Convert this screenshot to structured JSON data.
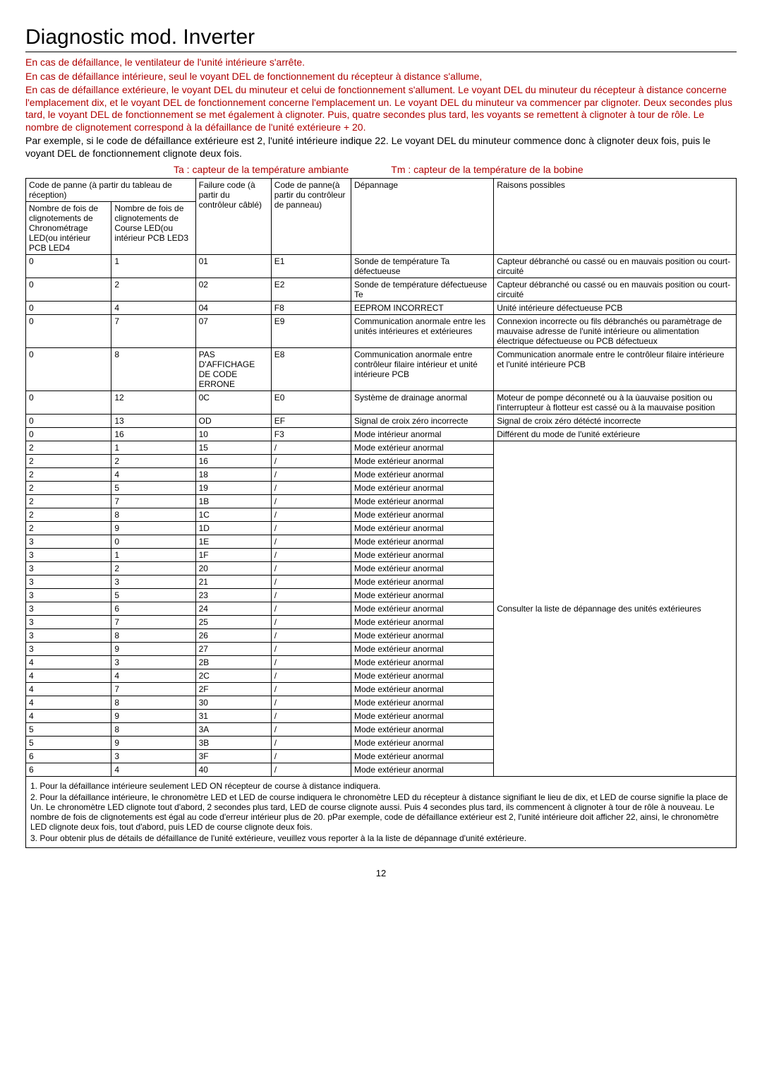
{
  "title": "Diagnostic mod. Inverter",
  "intro": [
    {
      "text": "En cas de défaillance, le ventilateur de l'unité intérieure s'arrête.",
      "red": true
    },
    {
      "text": "En cas de défaillance intérieure, seul le voyant DEL de fonctionnement du récepteur à distance s'allume,",
      "red": true
    },
    {
      "text": "En cas de défaillance extérieure, le voyant DEL du minuteur et celui de fonctionnement s'allument. Le voyant DEL du minuteur du récepteur à distance concerne l'emplacement dix, et le voyant DEL de fonctionnement concerne l'emplacement un. Le voyant DEL du minuteur va commencer par clignoter. Deux secondes plus tard, le voyant DEL de fonctionnement se met également à clignoter. Puis, quatre secondes plus tard, les voyants se remettent à clignoter à tour de rôle. Le nombre de clignotement correspond à la défaillance de l'unité extérieure + 20.",
      "red": true
    },
    {
      "text": "Par exemple, si le code de défaillance extérieure est 2, l'unité intérieure indique 22. Le voyant DEL du minuteur commence donc à clignoter deux fois, puis le voyant DEL de fonctionnement clignote deux fois.",
      "red": false
    }
  ],
  "legend": {
    "ta": "Ta : capteur de la température ambiante",
    "tm": "Tm : capteur de la température de la bobine"
  },
  "headers": {
    "topA": "Code de panne (à partir du tableau de réception)",
    "subA1": "Nombre de fois de clignotements de Chronométrage LED(ou intérieur PCB LED4",
    "subA2": "Nombre de fois de clignotements de Course LED(ou intérieur PCB LED3",
    "c3": "Failure code (à partir du contrôleur câblé)",
    "c4": "Code de panne(à partir du contrôleur de panneau)",
    "c5": "Dépannage",
    "c6": "Raisons possibles"
  },
  "rows_a": [
    {
      "a": "0",
      "b": "1",
      "c": "01",
      "d": "E1",
      "e": "Sonde de température Ta défectueuse",
      "f": "Capteur débranché ou cassé ou en mauvais position ou court-circuité"
    },
    {
      "a": "0",
      "b": "2",
      "c": "02",
      "d": "E2",
      "e": "Sonde de température défectueuse Te",
      "f": "Capteur débranché ou cassé ou en mauvais position ou court-circuité"
    },
    {
      "a": "0",
      "b": "4",
      "c": "04",
      "d": "F8",
      "e": "EEPROM INCORRECT",
      "f": "Unité intérieure défectueuse PCB"
    },
    {
      "a": "0",
      "b": "7",
      "c": "07",
      "d": "E9",
      "e": "Communication anormale entre les unités intérieures et extérieures",
      "f": "Connexion incorrecte ou fils débranchés ou paramètrage de mauvaise adresse de l'unité intérieure ou alimentation électrique défectueuse ou PCB défectueux"
    },
    {
      "a": "0",
      "b": "8",
      "c": "PAS D'AFFICHAGE DE CODE ERRONE",
      "d": "E8",
      "e": "Communication anormale entre contrôleur filaire intérieur et unité intérieure PCB",
      "f": "Communication anormale entre le contrôleur filaire intérieure et l'unité intérieure PCB"
    },
    {
      "a": "0",
      "b": "12",
      "c": "0C",
      "d": "E0",
      "e": "Système de drainage anormal",
      "f": "Moteur de pompe déconneté ou à la ùauvaise position ou l'interrupteur à flotteur est cassé ou à la mauvaise position"
    },
    {
      "a": "0",
      "b": "13",
      "c": "OD",
      "d": "EF",
      "e": "Signal de croix zéro incorrecte",
      "f": "Signal de croix zéro détécté incorrecte"
    },
    {
      "a": "0",
      "b": "16",
      "c": "10",
      "d": "F3",
      "e": "Mode intérieur anormal",
      "f": "Différent du mode de l'unité extérieure"
    }
  ],
  "rows_b": [
    {
      "a": "2",
      "b": "1",
      "c": "15",
      "d": "/",
      "e": "Mode extérieur anormal"
    },
    {
      "a": "2",
      "b": "2",
      "c": "16",
      "d": "/",
      "e": "Mode extérieur anormal"
    },
    {
      "a": "2",
      "b": "4",
      "c": "18",
      "d": "/",
      "e": "Mode extérieur anormal"
    },
    {
      "a": "2",
      "b": "5",
      "c": "19",
      "d": "/",
      "e": "Mode extérieur anormal"
    },
    {
      "a": "2",
      "b": "7",
      "c": "1B",
      "d": "/",
      "e": "Mode extérieur anormal"
    },
    {
      "a": "2",
      "b": "8",
      "c": "1C",
      "d": "/",
      "e": "Mode extérieur anormal"
    },
    {
      "a": "2",
      "b": "9",
      "c": "1D",
      "d": "/",
      "e": "Mode extérieur anormal"
    },
    {
      "a": "3",
      "b": "0",
      "c": "1E",
      "d": "/",
      "e": "Mode extérieur anormal"
    },
    {
      "a": "3",
      "b": "1",
      "c": "1F",
      "d": "/",
      "e": "Mode extérieur anormal"
    },
    {
      "a": "3",
      "b": "2",
      "c": "20",
      "d": "/",
      "e": "Mode extérieur anormal"
    },
    {
      "a": "3",
      "b": "3",
      "c": "21",
      "d": "/",
      "e": "Mode extérieur anormal"
    },
    {
      "a": "3",
      "b": "5",
      "c": "23",
      "d": "/",
      "e": "Mode extérieur anormal"
    },
    {
      "a": "3",
      "b": "6",
      "c": "24",
      "d": "/",
      "e": "Mode extérieur anormal"
    },
    {
      "a": "3",
      "b": "7",
      "c": "25",
      "d": "/",
      "e": "Mode extérieur anormal"
    },
    {
      "a": "3",
      "b": "8",
      "c": "26",
      "d": "/",
      "e": "Mode extérieur anormal"
    },
    {
      "a": "3",
      "b": "9",
      "c": "27",
      "d": "/",
      "e": "Mode extérieur anormal"
    },
    {
      "a": "4",
      "b": "3",
      "c": "2B",
      "d": "/",
      "e": "Mode extérieur anormal"
    },
    {
      "a": "4",
      "b": "4",
      "c": "2C",
      "d": "/",
      "e": "Mode extérieur anormal"
    },
    {
      "a": "4",
      "b": "7",
      "c": "2F",
      "d": "/",
      "e": "Mode extérieur anormal"
    },
    {
      "a": "4",
      "b": "8",
      "c": "30",
      "d": "/",
      "e": "Mode extérieur anormal"
    },
    {
      "a": "4",
      "b": "9",
      "c": "31",
      "d": "/",
      "e": "Mode extérieur anormal"
    },
    {
      "a": "5",
      "b": "8",
      "c": "3A",
      "d": "/",
      "e": "Mode extérieur anormal"
    },
    {
      "a": "5",
      "b": "9",
      "c": "3B",
      "d": "/",
      "e": "Mode extérieur anormal"
    },
    {
      "a": "6",
      "b": "3",
      "c": "3F",
      "d": "/",
      "e": "Mode extérieur anormal"
    },
    {
      "a": "6",
      "b": "4",
      "c": "40",
      "d": "/",
      "e": "Mode extérieur anormal"
    }
  ],
  "rows_b_merged_note": "Consulter la liste de dépannage des unités extérieures",
  "notes": [
    "1. Pour la défaillance intérieure seulement LED ON récepteur de course à distance indiquera.",
    "2. Pour la défaillance intérieure, le chronomètre LED et LED de course indiquera le chronomètre LED du récepteur à distance signifiant le lieu de dix, et LED de course signifie la place de Un. Le chronomètre LED clignote tout d'abord, 2 secondes plus tard, LED de course clignote aussi. Puis 4 secondes plus tard, ils commencent à clignoter à tour de rôle à nouveau. Le nombre de fois de clignotements est égal au code d'erreur intérieur plus de 20. pPar exemple, code de défaillance extérieur est 2, l'unité intérieure doit afficher 22, ainsi, le chronomètre LED clignote deux fois, tout d'abord, puis LED de course clignote deux fois.",
    "3. Pour obtenir plus de détails de défaillance de l'unité extérieure, veuillez vous reporter à la la liste de dépannage d'unité extérieure."
  ],
  "page_number": "12",
  "colors": {
    "red": "#b00000",
    "black": "#000000",
    "bg": "#ffffff"
  }
}
